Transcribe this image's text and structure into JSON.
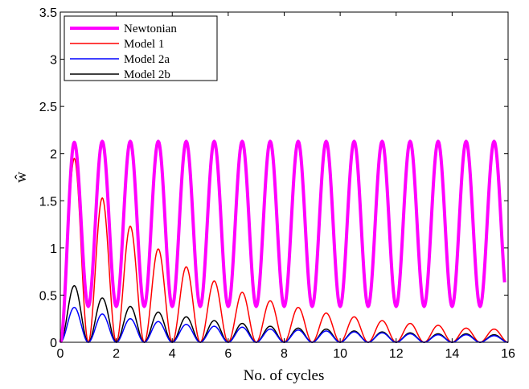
{
  "chart_data": {
    "type": "line",
    "title": "",
    "xlabel": "No. of cycles",
    "ylabel": "ŵ",
    "xlim": [
      0,
      16
    ],
    "ylim": [
      0,
      3.5
    ],
    "xticks": [
      "0",
      "2",
      "4",
      "6",
      "8",
      "10",
      "12",
      "14",
      "16"
    ],
    "yticks": [
      "0",
      "0.5",
      "1",
      "1.5",
      "2",
      "2.5",
      "3",
      "3.5"
    ],
    "grid": false,
    "legend_position": "top-left",
    "cycles_shown": 16,
    "series": [
      {
        "name": "Newtonian",
        "color": "#ff00ff",
        "description": "steady oscillation between ~0.38 and ~2.13 each cycle",
        "peaks": [
          2.12,
          2.13,
          2.13,
          2.13,
          2.13,
          2.13,
          2.13,
          2.13,
          2.13,
          2.13,
          2.13,
          2.13,
          2.13,
          2.13,
          2.13,
          2.13
        ],
        "troughs": [
          0.38,
          0.38,
          0.38,
          0.38,
          0.38,
          0.38,
          0.38,
          0.38,
          0.38,
          0.38,
          0.38,
          0.38,
          0.38,
          0.38,
          0.38,
          0.38
        ]
      },
      {
        "name": "Model 1",
        "color": "#ff0000",
        "peaks": [
          1.95,
          1.53,
          1.23,
          0.99,
          0.8,
          0.65,
          0.53,
          0.44,
          0.37,
          0.31,
          0.27,
          0.23,
          0.2,
          0.18,
          0.15,
          0.14
        ],
        "troughs": [
          0,
          0,
          0,
          0,
          0,
          0,
          0,
          0,
          0,
          0,
          0,
          0,
          0,
          0,
          0,
          0
        ]
      },
      {
        "name": "Model 2a",
        "color": "#0000ff",
        "peaks": [
          0.37,
          0.3,
          0.25,
          0.22,
          0.19,
          0.17,
          0.16,
          0.14,
          0.13,
          0.12,
          0.11,
          0.1,
          0.09,
          0.08,
          0.08,
          0.07
        ],
        "troughs": [
          0,
          0,
          0,
          0,
          0,
          0,
          0,
          0,
          0,
          0,
          0,
          0,
          0,
          0,
          0,
          0
        ]
      },
      {
        "name": "Model 2b",
        "color": "#000000",
        "peaks": [
          0.6,
          0.47,
          0.38,
          0.32,
          0.27,
          0.23,
          0.2,
          0.17,
          0.15,
          0.14,
          0.12,
          0.11,
          0.1,
          0.09,
          0.09,
          0.08
        ],
        "troughs": [
          0,
          0,
          0,
          0,
          0,
          0,
          0,
          0,
          0,
          0,
          0,
          0,
          0,
          0,
          0,
          0
        ]
      }
    ]
  }
}
